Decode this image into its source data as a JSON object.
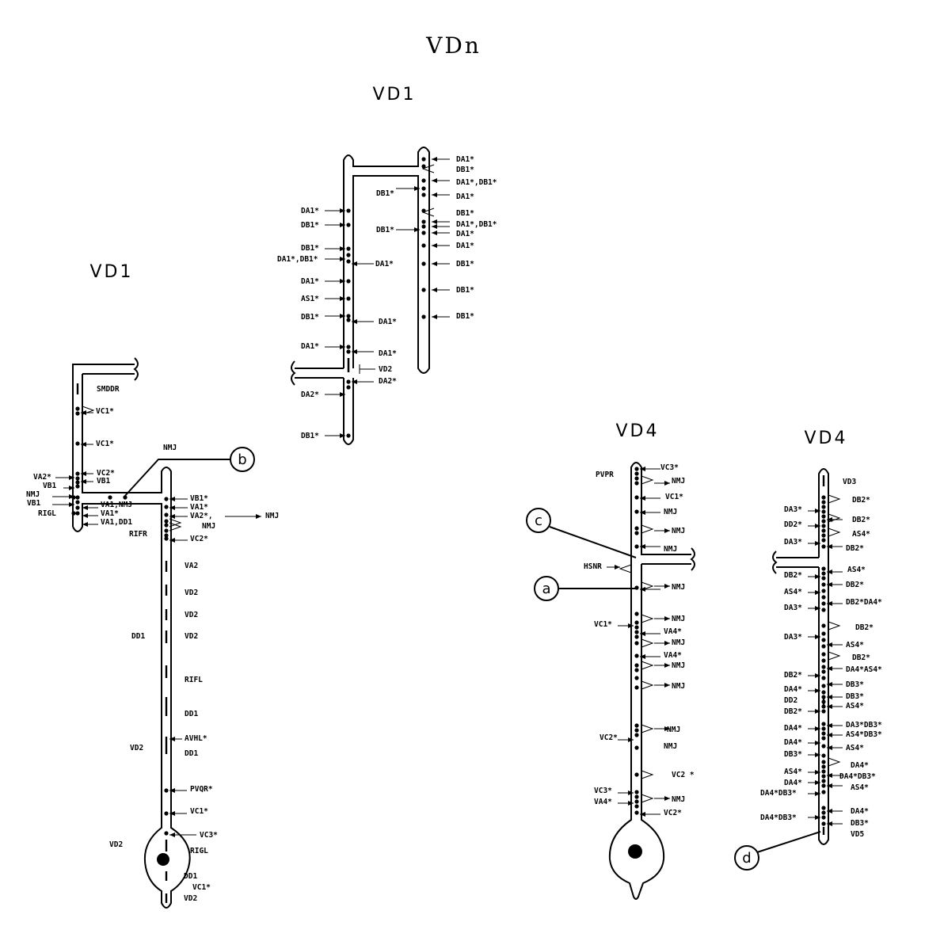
{
  "figure": {
    "title": "VDn",
    "heading_vd1_top": "VD1",
    "heading_vd1_left": "VD1",
    "heading_vd4_mid": "VD4",
    "heading_vd4_right": "VD4"
  },
  "markers": [
    "a",
    "b",
    "c",
    "d"
  ],
  "vd1_left": {
    "labels": [
      "SMDDR",
      "VC1*",
      "VC1*",
      "NMJ",
      "VC2*",
      "VA2*",
      "VB1",
      "VB1",
      "NMJ",
      "VB1",
      "VA1,NMJ",
      "VB1*",
      "VA1*",
      "RIGL",
      "VA1*",
      "VA2*,",
      "NMJ",
      "VA1,DD1",
      "NMJ",
      "RIFR",
      "VC2*",
      "VA2",
      "VD2",
      "VD2",
      "DD1",
      "VD2",
      "RIFL",
      "DD1",
      "AVHL*",
      "VD2",
      "DD1",
      "PVQR*",
      "VC1*",
      "VC3*",
      "VD2",
      "RIGL",
      "DD1",
      "VC1*",
      "VD2"
    ]
  },
  "vd1_top": {
    "labels": [
      "DA1*",
      "DB1*",
      "DA1*,DB1*",
      "DB1*",
      "DA1*",
      "DB1*",
      "DA1*,DB1*",
      "DB1*",
      "DA1*",
      "DA1*",
      "DB1*",
      "DB1*",
      "DB1*",
      "DA1*",
      "DB1*",
      "DA1*,DB1*",
      "DA1*",
      "DA1*",
      "AS1*",
      "DB1*",
      "DA1*",
      "DB1*",
      "DA1*",
      "VD2",
      "DA2*",
      "DA2*",
      "DB1*"
    ]
  },
  "vd4_mid": {
    "labels": [
      "VC3*",
      "PVPR",
      "NMJ",
      "VC1*",
      "NMJ",
      "NMJ",
      "NMJ",
      "HSNR",
      "NMJ",
      "NMJ",
      "VC1*",
      "VA4*",
      "NMJ",
      "VA4*",
      "NMJ",
      "NMJ",
      "NMJ",
      "VC2*",
      "NMJ",
      "VC2 *",
      "VC3*",
      "NMJ",
      "VA4*",
      "VC2*"
    ]
  },
  "vd4_right": {
    "labels": [
      "VD3",
      "DA3*",
      "DB2*",
      "DD2*",
      "DB2*",
      "AS4*",
      "DA3*",
      "DB2*",
      "DB2*",
      "AS4*",
      "AS4*",
      "DB2*",
      "DB2*DA4*",
      "DA3*",
      "DB2*",
      "DA3*",
      "AS4*",
      "DB2*",
      "DA4*AS4*",
      "DB2*",
      "DB3*",
      "DA4*",
      "DB3*",
      "DD2",
      "AS4*",
      "DB2*",
      "DA4*",
      "DA3*DB3*",
      "AS4*DB3*",
      "DA4*",
      "AS4*",
      "DB3*",
      "DA4*",
      "AS4*",
      "DA4*DB3*",
      "DA4*",
      "AS4*",
      "DA4*DB3*",
      "DA4*DB3*",
      "DA4*",
      "DB3*",
      "VD5"
    ]
  }
}
